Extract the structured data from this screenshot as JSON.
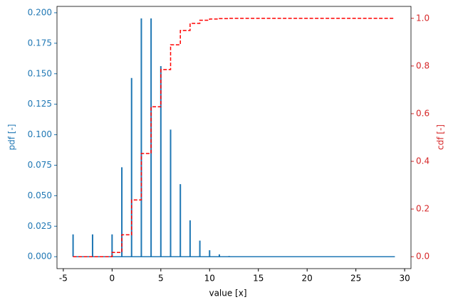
{
  "chart_data": {
    "type": "line",
    "xlabel": "value [x]",
    "ylabel": "pdf [-]",
    "y2label": "cdf [-]",
    "x": [
      -4,
      -2,
      0,
      1,
      2,
      3,
      4,
      5,
      6,
      7,
      8,
      9,
      10,
      11,
      12,
      13,
      14,
      15,
      16,
      17,
      18,
      19,
      20,
      21,
      22,
      23,
      24,
      25,
      26,
      27,
      28,
      29
    ],
    "series": [
      {
        "name": "pdf",
        "color": "#1f77b4",
        "style": "stem",
        "values": [
          0.0183,
          0.0183,
          0.0183,
          0.0733,
          0.1465,
          0.1954,
          0.1954,
          0.1563,
          0.1042,
          0.0595,
          0.0298,
          0.0132,
          0.0053,
          0.0019,
          0.0006,
          0,
          0,
          0,
          0,
          0,
          0,
          0,
          0,
          0,
          0,
          0,
          0,
          0,
          0,
          0,
          0,
          0
        ]
      },
      {
        "name": "cdf",
        "color": "#ff0000",
        "style": "step-dashed",
        "axis": "y2",
        "values": [
          0,
          0,
          0.018,
          0.092,
          0.238,
          0.433,
          0.629,
          0.785,
          0.889,
          0.949,
          0.979,
          0.992,
          0.997,
          0.999,
          1.0,
          1.0,
          1.0,
          1.0,
          1.0,
          1.0,
          1.0,
          1.0,
          1.0,
          1.0,
          1.0,
          1.0,
          1.0,
          1.0,
          1.0,
          1.0,
          1.0,
          1.0
        ]
      }
    ],
    "xlim": [
      -5.65,
      30.65
    ],
    "xticks": [
      -5,
      0,
      5,
      10,
      15,
      20,
      25,
      30
    ],
    "ylim": [
      -0.00977,
      0.2052
    ],
    "yticks": [
      {
        "value": 0,
        "label": "0.000"
      },
      {
        "value": 0.025,
        "label": "0.025"
      },
      {
        "value": 0.05,
        "label": "0.050"
      },
      {
        "value": 0.075,
        "label": "0.075"
      },
      {
        "value": 0.1,
        "label": "0.100"
      },
      {
        "value": 0.125,
        "label": "0.125"
      },
      {
        "value": 0.15,
        "label": "0.150"
      },
      {
        "value": 0.175,
        "label": "0.175"
      },
      {
        "value": 0.2,
        "label": "0.200"
      }
    ],
    "y2lim": [
      -0.05,
      1.05
    ],
    "y2ticks": [
      {
        "value": 0,
        "label": "0.0"
      },
      {
        "value": 0.2,
        "label": "0.2"
      },
      {
        "value": 0.4,
        "label": "0.4"
      },
      {
        "value": 0.6,
        "label": "0.6"
      },
      {
        "value": 0.8,
        "label": "0.8"
      },
      {
        "value": 1,
        "label": "1.0"
      }
    ]
  }
}
